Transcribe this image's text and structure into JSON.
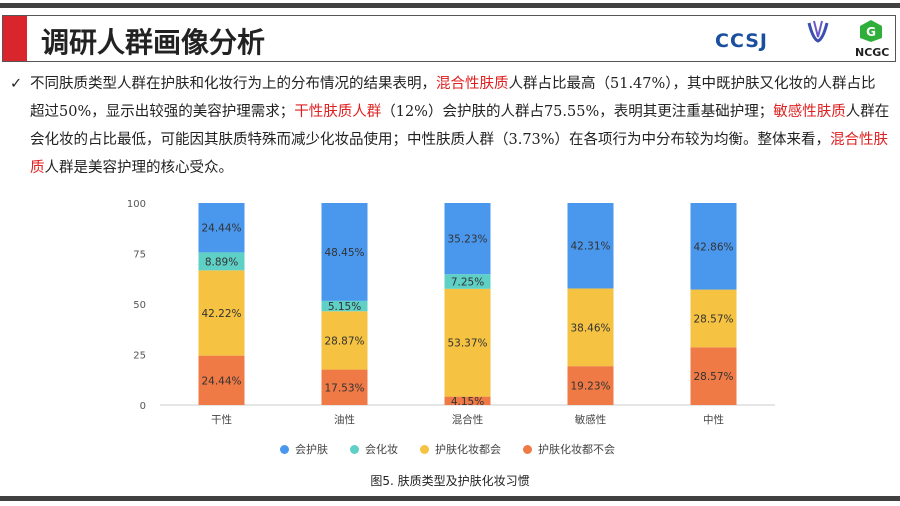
{
  "header": {
    "title": "调研人群画像分析",
    "logos": [
      "CCSJ",
      "NCGC"
    ]
  },
  "summary": {
    "segments": [
      {
        "t": "不同肤质类型人群在护肤和化妆行为上的分布情况的结果表明，",
        "red": false
      },
      {
        "t": "混合性肤质",
        "red": true
      },
      {
        "t": "人群占比最高（51.47%），其中既护肤又化妆的人群占比超过50%，显示出较强的美容护理需求；",
        "red": false
      },
      {
        "t": "干性肤质人群",
        "red": true
      },
      {
        "t": "（12%）会护肤的人群占75.55%，表明其更注重基础护理；",
        "red": false
      },
      {
        "t": "敏感性肤质",
        "red": true
      },
      {
        "t": "人群在会化妆的占比最低，可能因其肤质特殊而减少化妆品使用；中性肤质人群（3.73%）在各项行为中分布较为均衡。整体来看，",
        "red": false
      },
      {
        "t": "混合性肤质",
        "red": true
      },
      {
        "t": "人群是美容护理的核心受众。",
        "red": false
      }
    ]
  },
  "chart_data": {
    "type": "bar",
    "stacked": true,
    "title": "图5. 肤质类型及护肤化妆习惯",
    "categories": [
      "干性",
      "油性",
      "混合性",
      "敏感性",
      "中性"
    ],
    "ylim": [
      0,
      100
    ],
    "yticks": [
      0,
      25,
      50,
      75,
      100
    ],
    "legend_position": "bottom",
    "series": [
      {
        "name": "护肤化妆都不会",
        "color": "#ef7a45",
        "values": [
          24.44,
          17.53,
          4.15,
          19.23,
          28.57
        ]
      },
      {
        "name": "护肤化妆都会",
        "color": "#f5c242",
        "values": [
          42.22,
          28.87,
          53.37,
          38.46,
          28.57
        ]
      },
      {
        "name": "会化妆",
        "color": "#5fd0c6",
        "values": [
          8.89,
          5.15,
          7.25,
          0,
          0
        ]
      },
      {
        "name": "会护肤",
        "color": "#4a97ee",
        "values": [
          24.44,
          48.45,
          35.23,
          42.31,
          42.86
        ]
      }
    ],
    "legend_order": [
      "会护肤",
      "会化妆",
      "护肤化妆都会",
      "护肤化妆都不会"
    ]
  }
}
